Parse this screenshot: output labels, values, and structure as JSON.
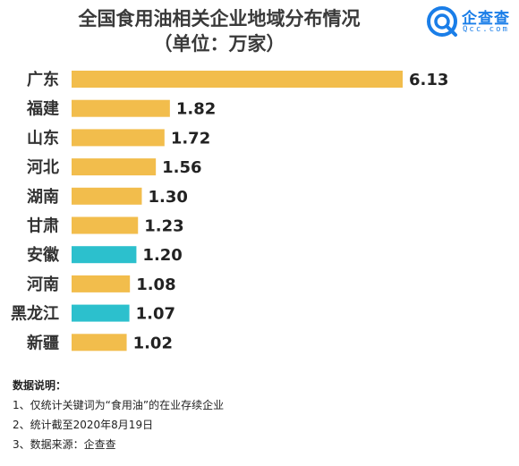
{
  "header": {
    "title": "全国食用油相关企业地域分布情况",
    "subtitle": "（单位：万家）",
    "logo_cn": "企查查",
    "logo_en": "Qcc.com"
  },
  "chart_data": {
    "type": "bar",
    "orientation": "horizontal",
    "title": "全国食用油相关企业地域分布情况",
    "subtitle": "（单位：万家）",
    "categories": [
      "广东",
      "福建",
      "山东",
      "河北",
      "湖南",
      "甘肃",
      "安徽",
      "河南",
      "黑龙江",
      "新疆"
    ],
    "values": [
      6.13,
      1.82,
      1.72,
      1.56,
      1.3,
      1.23,
      1.2,
      1.08,
      1.07,
      1.02
    ],
    "value_labels": [
      "6.13",
      "1.82",
      "1.72",
      "1.56",
      "1.30",
      "1.23",
      "1.20",
      "1.08",
      "1.07",
      "1.02"
    ],
    "highlighted": [
      "安徽",
      "黑龙江"
    ],
    "xlim": [
      0,
      6.13
    ],
    "grid": false,
    "colors": {
      "bar": "#f2bd4c",
      "highlight": "#2cc0cd",
      "label": "#222222"
    }
  },
  "notes": {
    "heading": "数据说明：",
    "items": [
      "1、仅统计关键词为“食用油”的在业存续企业",
      "2、统计截至2020年8月19日",
      "3、数据来源：企查查"
    ]
  }
}
